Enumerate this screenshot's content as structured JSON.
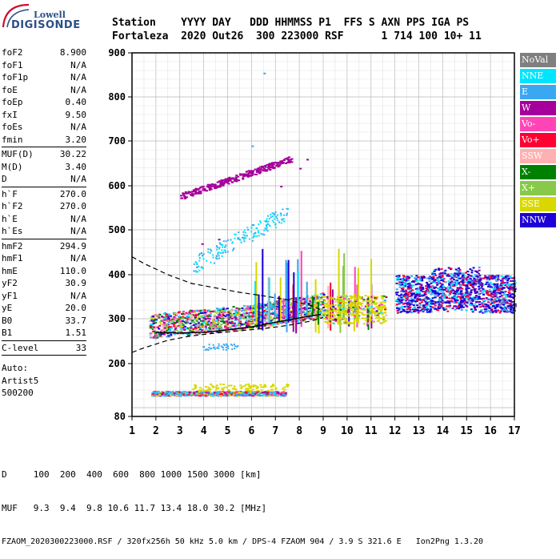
{
  "logo": {
    "line1": "Lowell",
    "line2": "DIGISONDE"
  },
  "header": {
    "line1": "Station    YYYY DAY   DDD HHMMSS P1  FFS S AXN PPS IGA PS",
    "line2": "Fortaleza  2020 Out26  300 223000 RSF      1 714 100 10+ 11"
  },
  "params": {
    "group1": [
      {
        "k": "foF2",
        "v": "8.900"
      },
      {
        "k": "foF1",
        "v": "N/A"
      },
      {
        "k": "foF1p",
        "v": "N/A"
      },
      {
        "k": "foE",
        "v": "N/A"
      },
      {
        "k": "foEp",
        "v": "0.40"
      },
      {
        "k": "fxI",
        "v": "9.50"
      },
      {
        "k": "foEs",
        "v": "N/A"
      },
      {
        "k": "fmin",
        "v": "3.20"
      }
    ],
    "group2": [
      {
        "k": "MUF(D)",
        "v": "30.22"
      },
      {
        "k": "M(D)",
        "v": "3.40"
      },
      {
        "k": "D",
        "v": "N/A"
      }
    ],
    "group3": [
      {
        "k": "h`F",
        "v": "270.0"
      },
      {
        "k": "h`F2",
        "v": "270.0"
      },
      {
        "k": "h`E",
        "v": "N/A"
      },
      {
        "k": "h`Es",
        "v": "N/A"
      }
    ],
    "group4": [
      {
        "k": "hmF2",
        "v": "294.9"
      },
      {
        "k": "hmF1",
        "v": "N/A"
      },
      {
        "k": "hmE",
        "v": "110.0"
      },
      {
        "k": "yF2",
        "v": "30.9"
      },
      {
        "k": "yF1",
        "v": "N/A"
      },
      {
        "k": "yE",
        "v": "20.0"
      },
      {
        "k": "B0",
        "v": "33.7"
      },
      {
        "k": "B1",
        "v": "1.51"
      }
    ],
    "group5": [
      {
        "k": "C-level",
        "v": "33"
      }
    ],
    "auto": [
      "Auto:",
      "Artist5",
      "500200"
    ]
  },
  "legend": [
    {
      "label": "NoVal",
      "color": "#7f7f7f"
    },
    {
      "label": "NNE",
      "color": "#00e5ff"
    },
    {
      "label": "E",
      "color": "#3aa8f0"
    },
    {
      "label": "W",
      "color": "#a5009b"
    },
    {
      "label": "Vo-",
      "color": "#ff45b5"
    },
    {
      "label": "Vo+",
      "color": "#ff0033"
    },
    {
      "label": "SSW",
      "color": "#ffb0b0"
    },
    {
      "label": "X-",
      "color": "#008000"
    },
    {
      "label": "X+",
      "color": "#88c84a"
    },
    {
      "label": "SSE",
      "color": "#d8d800"
    },
    {
      "label": "NNW",
      "color": "#1e00d8"
    }
  ],
  "footer": {
    "row1": "D     100  200  400  600  800 1000 1500 3000 [km]",
    "row2": "MUF   9.3  9.4  9.8 10.6 11.7 13.4 18.0 30.2 [MHz]",
    "row3": "FZAOM_2020300223000.RSF / 320fx256h 50 kHz 5.0 km / DPS-4 FZAOM 904 / 3.9 S 321.6 E   Ion2Png 1.3.20"
  },
  "chart_data": {
    "type": "scatter",
    "title": "",
    "xlabel": "",
    "ylabel": "",
    "xlim": [
      1,
      17
    ],
    "ylim": [
      80,
      900
    ],
    "xticks": [
      1,
      2,
      3,
      4,
      5,
      6,
      7,
      8,
      9,
      10,
      11,
      12,
      13,
      14,
      15,
      16,
      17
    ],
    "yticks": [
      80,
      200,
      300,
      400,
      500,
      600,
      700,
      800,
      900
    ],
    "grid": true,
    "traces": [
      {
        "name": "O-trace ionogram F2 echoes",
        "color_key": "mixed",
        "x_range": [
          1.7,
          9.0
        ],
        "h_range": [
          255,
          340
        ]
      },
      {
        "name": "E-layer echoes",
        "color_key": "mixed",
        "x_range": [
          1.8,
          7.5
        ],
        "h_range": [
          125,
          145
        ]
      },
      {
        "name": "second-hop echoes",
        "color_key": "W",
        "x_range": [
          3.0,
          7.8
        ],
        "h_range": [
          570,
          670
        ]
      },
      {
        "name": "spread F",
        "color_key": "NNW",
        "x_range": [
          12.0,
          17.0
        ],
        "h_range": [
          300,
          420
        ]
      }
    ],
    "profile_curves": [
      {
        "name": "upper dashed",
        "points": [
          [
            1.0,
            440
          ],
          [
            1.5,
            425
          ],
          [
            2.5,
            400
          ],
          [
            3.5,
            380
          ],
          [
            4.5,
            370
          ],
          [
            5.5,
            360
          ],
          [
            6.5,
            352
          ],
          [
            7.5,
            343
          ],
          [
            8.5,
            330
          ],
          [
            9.0,
            318
          ]
        ]
      },
      {
        "name": "lower dashed",
        "points": [
          [
            1.0,
            225
          ],
          [
            1.5,
            235
          ],
          [
            2.5,
            252
          ],
          [
            3.5,
            262
          ],
          [
            4.5,
            268
          ],
          [
            5.5,
            273
          ],
          [
            6.5,
            278
          ],
          [
            7.5,
            285
          ],
          [
            8.5,
            295
          ],
          [
            9.0,
            303
          ]
        ]
      },
      {
        "name": "solid profile",
        "points": [
          [
            2.0,
            270
          ],
          [
            3.0,
            268
          ],
          [
            4.0,
            270
          ],
          [
            5.0,
            275
          ],
          [
            6.0,
            282
          ],
          [
            7.0,
            292
          ],
          [
            8.0,
            302
          ],
          [
            8.9,
            310
          ]
        ]
      }
    ]
  }
}
